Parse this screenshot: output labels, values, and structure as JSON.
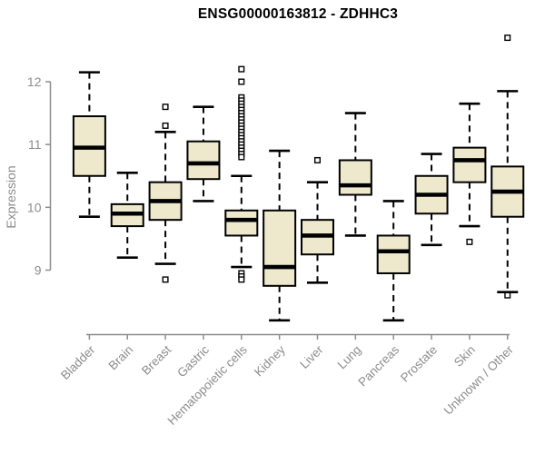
{
  "colors": {
    "box_fill": "#EEE8CD",
    "box_stroke": "#000000",
    "axis": "#8C8C8C",
    "title": "#000000",
    "background": "#FFFFFF"
  },
  "chart_data": {
    "type": "boxplot",
    "title": "ENSG00000163812 - ZDHHC3",
    "xlabel": "",
    "ylabel": "Expression",
    "ylim": [
      8.0,
      12.8
    ],
    "yticks": [
      9,
      10,
      11,
      12
    ],
    "grid": false,
    "legend": false,
    "categories": [
      "Bladder",
      "Brain",
      "Breast",
      "Gastric",
      "Hematopoietic cells",
      "Kidney",
      "Liver",
      "Lung",
      "Pancreas",
      "Prostate",
      "Skin",
      "Unknown / Other"
    ],
    "series": [
      {
        "category": "Bladder",
        "low": 9.85,
        "q1": 10.5,
        "median": 10.95,
        "q3": 11.45,
        "high": 12.15,
        "outliers": []
      },
      {
        "category": "Brain",
        "low": 9.2,
        "q1": 9.7,
        "median": 9.9,
        "q3": 10.05,
        "high": 10.55,
        "outliers": []
      },
      {
        "category": "Breast",
        "low": 9.1,
        "q1": 9.8,
        "median": 10.1,
        "q3": 10.4,
        "high": 11.2,
        "outliers": [
          11.6,
          11.3,
          8.85
        ]
      },
      {
        "category": "Gastric",
        "low": 10.1,
        "q1": 10.45,
        "median": 10.7,
        "q3": 11.05,
        "high": 11.6,
        "outliers": []
      },
      {
        "category": "Hematopoietic cells",
        "low": 9.05,
        "q1": 9.55,
        "median": 9.8,
        "q3": 9.95,
        "high": 10.5,
        "outliers": [
          12.2,
          12.0,
          11.75,
          11.7,
          11.65,
          11.6,
          11.55,
          11.5,
          11.45,
          11.4,
          11.35,
          11.3,
          11.25,
          11.2,
          11.15,
          11.1,
          11.05,
          11.0,
          10.95,
          10.9,
          10.85,
          10.8,
          8.95,
          8.9,
          8.85
        ]
      },
      {
        "category": "Kidney",
        "low": 8.2,
        "q1": 8.75,
        "median": 9.05,
        "q3": 9.95,
        "high": 10.9,
        "outliers": []
      },
      {
        "category": "Liver",
        "low": 8.8,
        "q1": 9.25,
        "median": 9.55,
        "q3": 9.8,
        "high": 10.4,
        "outliers": [
          10.75
        ]
      },
      {
        "category": "Lung",
        "low": 9.55,
        "q1": 10.2,
        "median": 10.35,
        "q3": 10.75,
        "high": 11.5,
        "outliers": []
      },
      {
        "category": "Pancreas",
        "low": 8.2,
        "q1": 8.95,
        "median": 9.3,
        "q3": 9.55,
        "high": 10.1,
        "outliers": []
      },
      {
        "category": "Prostate",
        "low": 9.4,
        "q1": 9.9,
        "median": 10.2,
        "q3": 10.5,
        "high": 10.85,
        "outliers": []
      },
      {
        "category": "Skin",
        "low": 9.7,
        "q1": 10.4,
        "median": 10.75,
        "q3": 10.95,
        "high": 11.65,
        "outliers": [
          9.45
        ]
      },
      {
        "category": "Unknown / Other",
        "low": 8.65,
        "q1": 9.85,
        "median": 10.25,
        "q3": 10.65,
        "high": 11.85,
        "outliers": [
          12.7,
          8.6
        ]
      }
    ]
  }
}
